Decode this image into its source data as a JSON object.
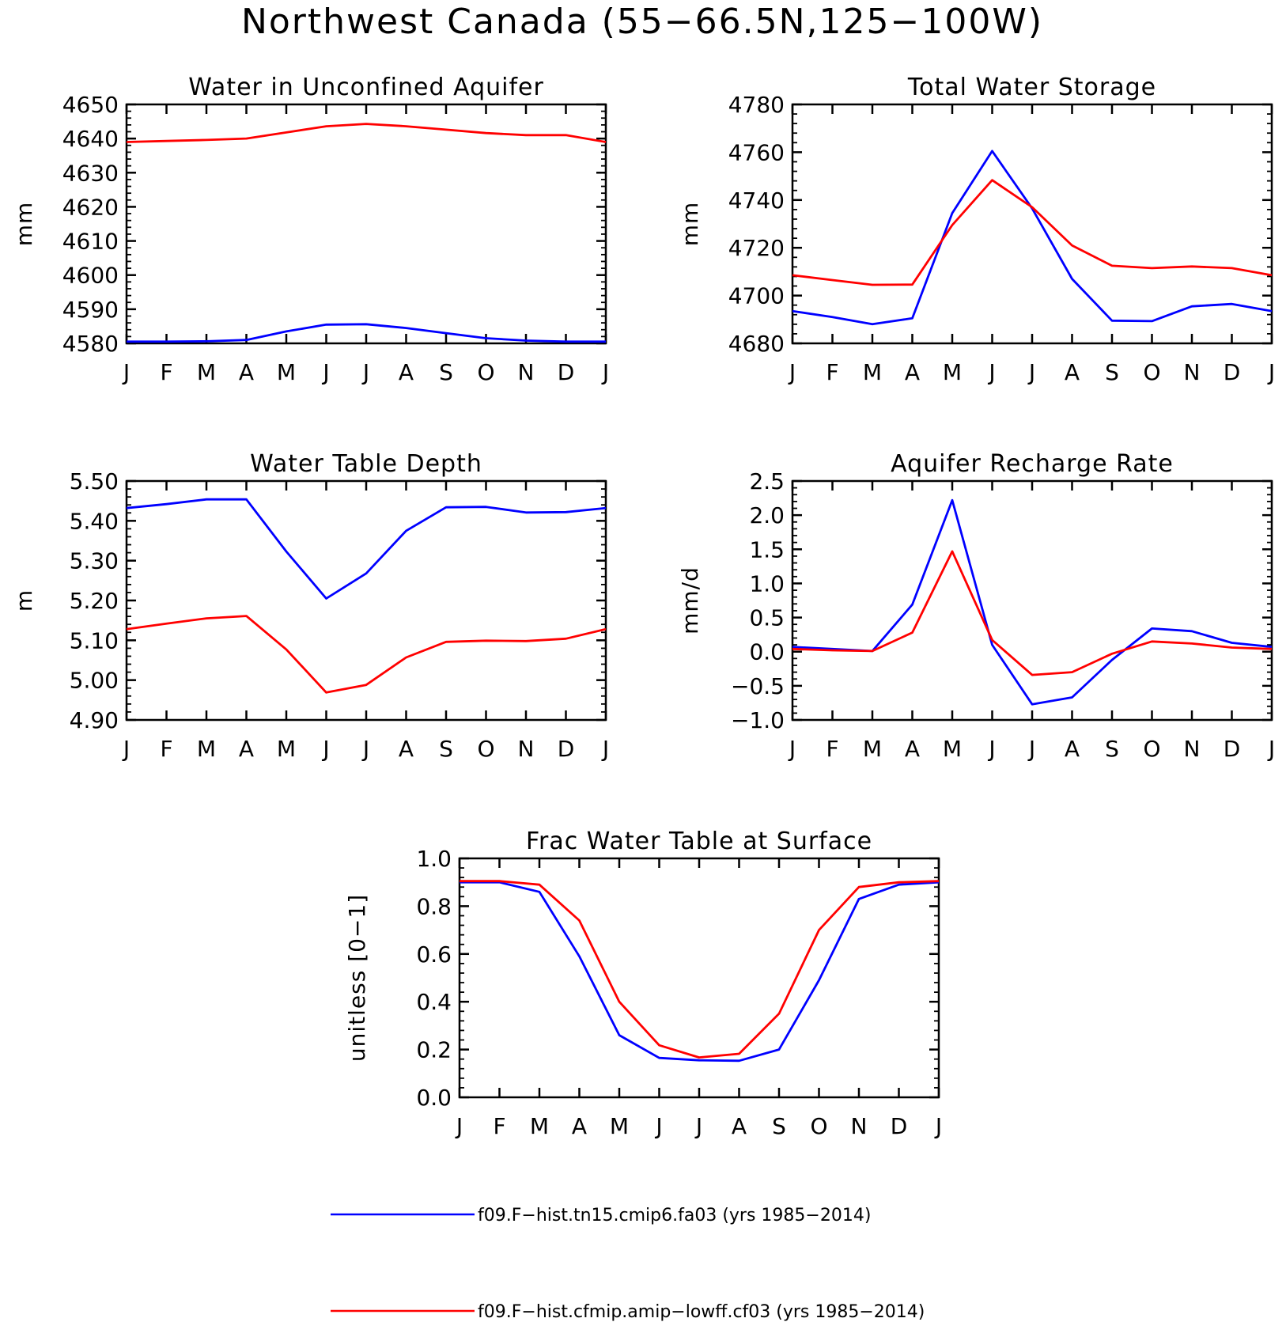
{
  "title": "Northwest Canada (55−66.5N,125−100W)",
  "colors": {
    "series1": "#0000ff",
    "series2": "#ff0000",
    "axis": "#000000"
  },
  "legend": [
    {
      "label": "f09.F−hist.tn15.cmip6.fa03 (yrs 1985−2014)",
      "color": "#0000ff"
    },
    {
      "label": "f09.F−hist.cfmip.amip−lowff.cf03 (yrs 1985−2014)",
      "color": "#ff0000"
    }
  ],
  "chart_data": [
    {
      "type": "line",
      "title": "Water in Unconfined Aquifer",
      "xlabel": "",
      "ylabel": "mm",
      "categories": [
        "J",
        "F",
        "M",
        "A",
        "M",
        "J",
        "J",
        "A",
        "S",
        "O",
        "N",
        "D",
        "J"
      ],
      "ylim": [
        4580,
        4650
      ],
      "yticks": [
        4580,
        4590,
        4600,
        4610,
        4620,
        4630,
        4640,
        4650
      ],
      "ytick_labels": [
        "4580",
        "4590",
        "4600",
        "4610",
        "4620",
        "4630",
        "4640",
        "4650"
      ],
      "series": [
        {
          "color": "#0000ff",
          "values": [
            4580.5,
            4580.5,
            4580.6,
            4581.0,
            4583.5,
            4585.5,
            4585.6,
            4584.5,
            4583.0,
            4581.5,
            4580.8,
            4580.5,
            4580.5
          ]
        },
        {
          "color": "#ff0000",
          "values": [
            4639.0,
            4639.3,
            4639.6,
            4640.0,
            4641.8,
            4643.6,
            4644.3,
            4643.6,
            4642.6,
            4641.6,
            4641.0,
            4641.0,
            4639.0
          ]
        }
      ]
    },
    {
      "type": "line",
      "title": "Total Water Storage",
      "xlabel": "",
      "ylabel": "mm",
      "categories": [
        "J",
        "F",
        "M",
        "A",
        "M",
        "J",
        "J",
        "A",
        "S",
        "O",
        "N",
        "D",
        "J"
      ],
      "ylim": [
        4680,
        4780
      ],
      "yticks": [
        4680,
        4700,
        4720,
        4740,
        4760,
        4780
      ],
      "ytick_labels": [
        "4680",
        "4700",
        "4720",
        "4740",
        "4760",
        "4780"
      ],
      "series": [
        {
          "color": "#0000ff",
          "values": [
            4693.5,
            4691.0,
            4688.0,
            4690.5,
            4734.5,
            4760.5,
            4736.5,
            4707.0,
            4689.5,
            4689.3,
            4695.5,
            4696.5,
            4693.5
          ]
        },
        {
          "color": "#ff0000",
          "values": [
            4708.5,
            4706.5,
            4704.5,
            4704.6,
            4729.5,
            4748.3,
            4737.0,
            4721.0,
            4712.5,
            4711.5,
            4712.2,
            4711.5,
            4708.5
          ]
        }
      ]
    },
    {
      "type": "line",
      "title": "Water Table Depth",
      "xlabel": "",
      "ylabel": "m",
      "categories": [
        "J",
        "F",
        "M",
        "A",
        "M",
        "J",
        "J",
        "A",
        "S",
        "O",
        "N",
        "D",
        "J"
      ],
      "ylim": [
        4.9,
        5.5
      ],
      "yticks": [
        4.9,
        5.0,
        5.1,
        5.2,
        5.3,
        5.4,
        5.5
      ],
      "ytick_labels": [
        "4.90",
        "5.00",
        "5.10",
        "5.20",
        "5.30",
        "5.40",
        "5.50"
      ],
      "series": [
        {
          "color": "#0000ff",
          "values": [
            5.432,
            5.442,
            5.454,
            5.454,
            5.323,
            5.205,
            5.268,
            5.375,
            5.434,
            5.435,
            5.421,
            5.422,
            5.432
          ]
        },
        {
          "color": "#ff0000",
          "values": [
            5.128,
            5.142,
            5.155,
            5.161,
            5.077,
            4.969,
            4.988,
            5.057,
            5.096,
            5.099,
            5.098,
            5.104,
            5.128
          ]
        }
      ]
    },
    {
      "type": "line",
      "title": "Aquifer Recharge Rate",
      "xlabel": "",
      "ylabel": "mm/d",
      "categories": [
        "J",
        "F",
        "M",
        "A",
        "M",
        "J",
        "J",
        "A",
        "S",
        "O",
        "N",
        "D",
        "J"
      ],
      "ylim": [
        -1.0,
        2.5
      ],
      "yticks": [
        -1.0,
        -0.5,
        0.0,
        0.5,
        1.0,
        1.5,
        2.0,
        2.5
      ],
      "ytick_labels": [
        "−1.0",
        "−0.5",
        "0.0",
        "0.5",
        "1.0",
        "1.5",
        "2.0",
        "2.5"
      ],
      "series": [
        {
          "color": "#0000ff",
          "values": [
            0.07,
            0.04,
            0.01,
            0.69,
            2.22,
            0.1,
            -0.77,
            -0.67,
            -0.12,
            0.34,
            0.3,
            0.13,
            0.07
          ]
        },
        {
          "color": "#ff0000",
          "values": [
            0.04,
            0.02,
            0.01,
            0.28,
            1.47,
            0.17,
            -0.34,
            -0.3,
            -0.03,
            0.15,
            0.12,
            0.06,
            0.04
          ]
        }
      ]
    },
    {
      "type": "line",
      "title": "Frac Water Table at Surface",
      "xlabel": "",
      "ylabel": "unitless [0−1]",
      "categories": [
        "J",
        "F",
        "M",
        "A",
        "M",
        "J",
        "J",
        "A",
        "S",
        "O",
        "N",
        "D",
        "J"
      ],
      "ylim": [
        0.0,
        1.0
      ],
      "yticks": [
        0.0,
        0.2,
        0.4,
        0.6,
        0.8,
        1.0
      ],
      "ytick_labels": [
        "0.0",
        "0.2",
        "0.4",
        "0.6",
        "0.8",
        "1.0"
      ],
      "series": [
        {
          "color": "#0000ff",
          "values": [
            0.9,
            0.9,
            0.86,
            0.59,
            0.26,
            0.165,
            0.155,
            0.153,
            0.2,
            0.49,
            0.83,
            0.89,
            0.9
          ]
        },
        {
          "color": "#ff0000",
          "values": [
            0.905,
            0.905,
            0.89,
            0.74,
            0.4,
            0.218,
            0.167,
            0.182,
            0.35,
            0.7,
            0.88,
            0.9,
            0.905
          ]
        }
      ]
    }
  ]
}
